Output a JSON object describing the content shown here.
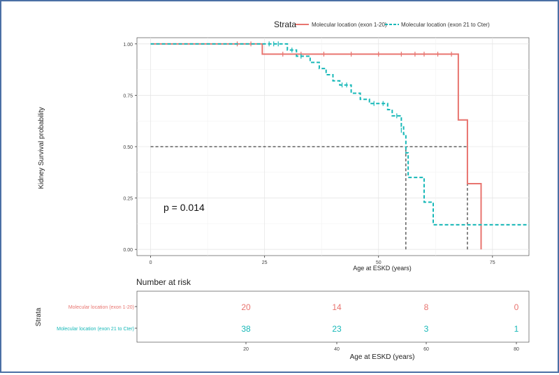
{
  "legend": {
    "title": "Strata",
    "entries": [
      {
        "label": "Molecular location (exon 1-20)",
        "color": "#e8746f"
      },
      {
        "label": "Molecular location (exon 21 to Cter)",
        "color": "#17b8b8"
      }
    ]
  },
  "annotation": "p = 0.014",
  "risk_table": {
    "title": "Number at risk",
    "ylabel": "Strata",
    "xlabel": "Age at ESKD (years)",
    "times": [
      "20",
      "40",
      "60",
      "80"
    ],
    "rows": [
      {
        "label": "Molecular location (exon 1-20)",
        "color": "#e8746f",
        "counts": [
          "20",
          "14",
          "8",
          "0"
        ]
      },
      {
        "label": "Molecular location (exon 21 to Cter)",
        "color": "#17b8b8",
        "counts": [
          "38",
          "23",
          "3",
          "1"
        ]
      }
    ]
  },
  "chart_data": {
    "type": "line",
    "subtype": "kaplan-meier",
    "xlabel": "Age at ESKD (years)",
    "ylabel": "Kidney Survival probability",
    "xlim": [
      -3,
      83
    ],
    "ylim": [
      -0.03,
      1.03
    ],
    "xticks": [
      0,
      25,
      50,
      75
    ],
    "yticks": [
      0,
      0.25,
      0.5,
      0.75,
      1
    ],
    "ytick_labels": [
      "0.00",
      "0.25",
      "0.50",
      "0.75",
      "1.00"
    ],
    "grid": true,
    "legend_position": "top",
    "series": [
      {
        "name": "Molecular location (exon 1-20)",
        "color": "#e8746f",
        "dash": false,
        "steps": [
          [
            0,
            1.0
          ],
          [
            24.5,
            0.95
          ],
          [
            67.5,
            0.63
          ],
          [
            69.5,
            0.32
          ],
          [
            72.5,
            0.0
          ]
        ],
        "censored": [
          [
            19,
            1.0
          ],
          [
            22,
            1.0
          ],
          [
            29,
            0.95
          ],
          [
            33,
            0.95
          ],
          [
            38,
            0.95
          ],
          [
            44,
            0.95
          ],
          [
            50,
            0.95
          ],
          [
            55,
            0.95
          ],
          [
            58,
            0.95
          ],
          [
            60,
            0.95
          ],
          [
            63,
            0.95
          ],
          [
            66,
            0.95
          ]
        ]
      },
      {
        "name": "Molecular location (exon 21 to Cter)",
        "color": "#17b8b8",
        "dash": true,
        "steps": [
          [
            0,
            1.0
          ],
          [
            30,
            0.97
          ],
          [
            32,
            0.94
          ],
          [
            35,
            0.91
          ],
          [
            37,
            0.88
          ],
          [
            38.5,
            0.85
          ],
          [
            40,
            0.82
          ],
          [
            41.5,
            0.8
          ],
          [
            44,
            0.76
          ],
          [
            46,
            0.73
          ],
          [
            48,
            0.71
          ],
          [
            52,
            0.68
          ],
          [
            53,
            0.65
          ],
          [
            55,
            0.6
          ],
          [
            55.5,
            0.56
          ],
          [
            56,
            0.47
          ],
          [
            56.5,
            0.35
          ],
          [
            60,
            0.23
          ],
          [
            62,
            0.12
          ],
          [
            83,
            0.12
          ]
        ],
        "censored": [
          [
            26,
            1.0
          ],
          [
            27,
            1.0
          ],
          [
            28,
            1.0
          ],
          [
            31,
            0.97
          ],
          [
            33,
            0.94
          ],
          [
            42,
            0.8
          ],
          [
            43,
            0.8
          ],
          [
            49,
            0.71
          ],
          [
            51,
            0.71
          ],
          [
            54,
            0.65
          ],
          [
            55,
            0.58
          ]
        ]
      }
    ],
    "reference_lines": [
      {
        "y": 0.5,
        "x_from": 0,
        "x_to": 69.5
      },
      {
        "x": 56,
        "y_from": 0,
        "y_to": 0.5
      },
      {
        "x": 69.5,
        "y_from": 0,
        "y_to": 0.5
      }
    ]
  }
}
